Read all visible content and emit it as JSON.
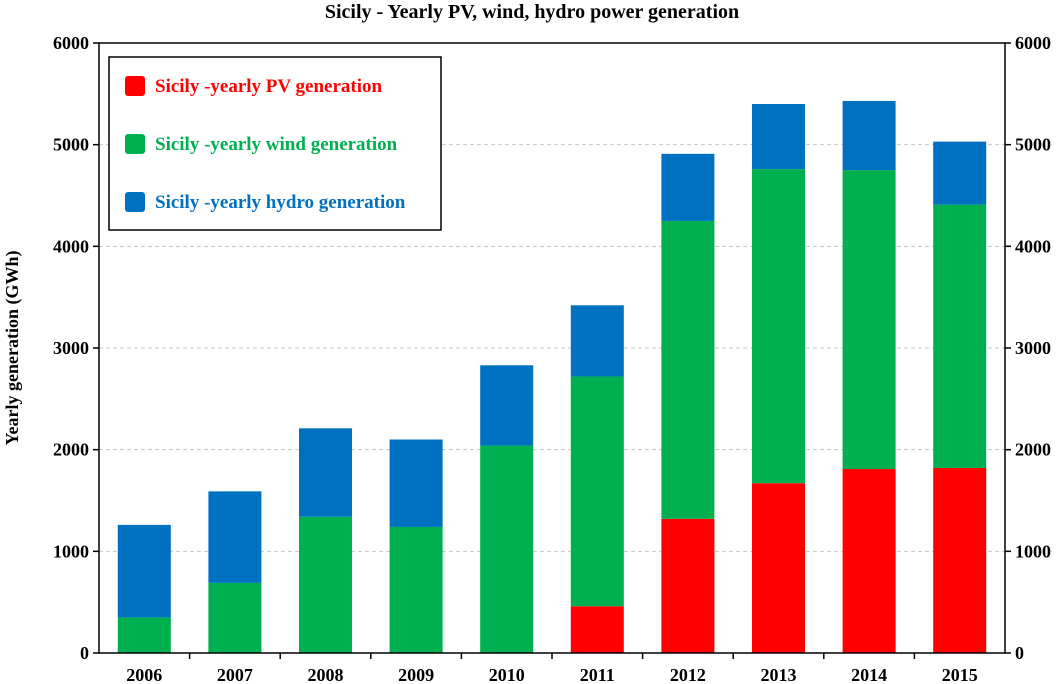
{
  "chart_data": {
    "type": "bar",
    "stacked": true,
    "title": "Sicily - Yearly PV, wind, hydro power generation",
    "xlabel": "",
    "ylabel": "Yearly generation (GWh)",
    "ylim": [
      0,
      6000
    ],
    "yticks": [
      "0",
      "1000",
      "2000",
      "3000",
      "4000",
      "5000",
      "6000"
    ],
    "right_axis": true,
    "grid": true,
    "legend_position": "top-left",
    "categories": [
      "2006",
      "2007",
      "2008",
      "2009",
      "2010",
      "2011",
      "2012",
      "2013",
      "2014",
      "2015"
    ],
    "series": [
      {
        "name": "Sicily -yearly PV generation",
        "color": "#ff0000",
        "values": [
          0,
          0,
          0,
          0,
          0,
          460,
          1320,
          1670,
          1810,
          1820
        ]
      },
      {
        "name": "Sicily -yearly wind generation",
        "color": "#00b050",
        "values": [
          350,
          690,
          1340,
          1240,
          2040,
          2260,
          2930,
          3090,
          2940,
          2590
        ]
      },
      {
        "name": "Sicily -yearly hydro generation",
        "color": "#0070c0",
        "values": [
          910,
          900,
          870,
          860,
          790,
          700,
          660,
          640,
          680,
          620
        ]
      }
    ]
  }
}
